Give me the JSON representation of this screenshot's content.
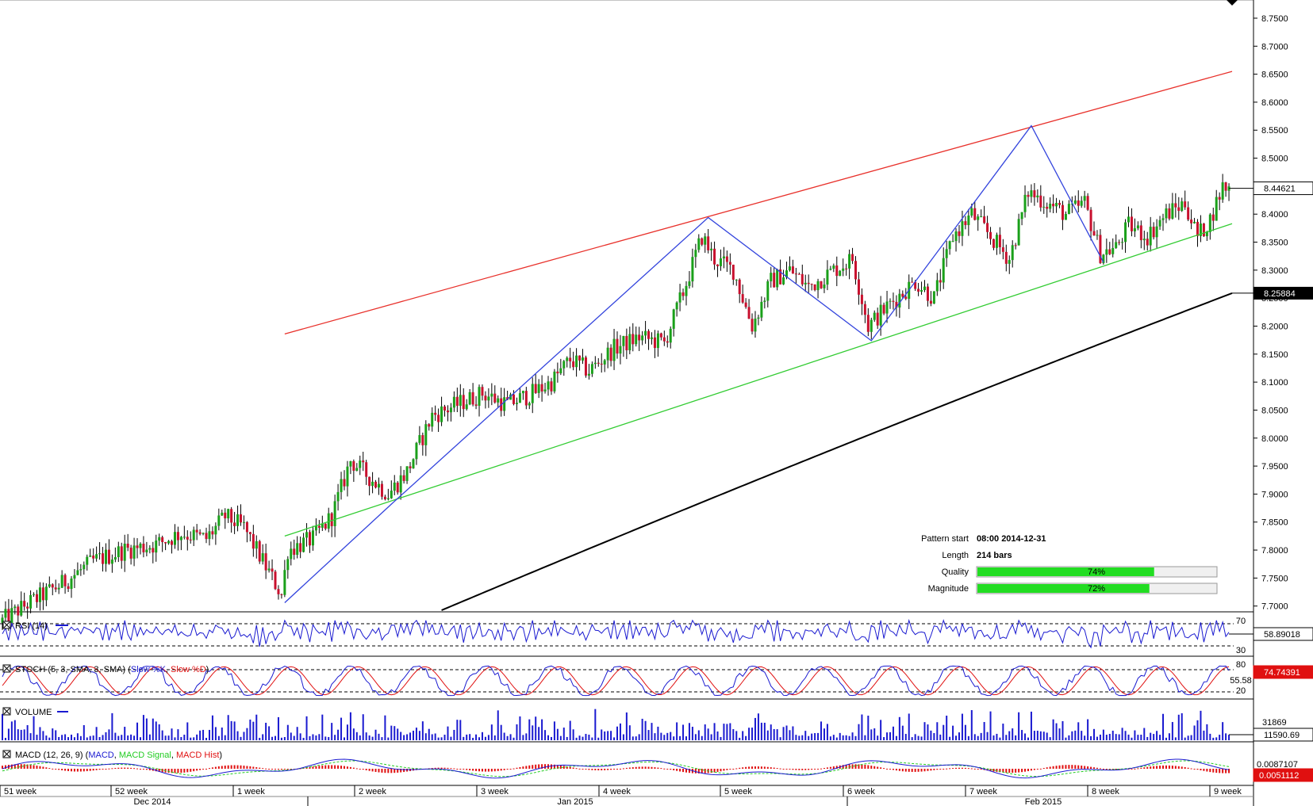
{
  "colors": {
    "bull": "#1aa01a",
    "bear": "#c8102e",
    "resistance": "#e8302a",
    "support": "#33cc33",
    "zigzag": "#3344dd",
    "ma": "#000000",
    "rsi": "#1a1ad0",
    "stoch_k": "#1a1ad0",
    "stoch_d": "#e01010",
    "volume": "#1a1ad0",
    "macd": "#1a1ad0",
    "macd_signal": "#22cc22",
    "macd_hist": "#e01010",
    "label_red_bg": "#e01010",
    "label_dark_bg": "#000000",
    "quality_bar": "#22dd22"
  },
  "price_axis": {
    "ticks": [
      "8.7500",
      "8.7000",
      "8.6500",
      "8.6000",
      "8.5500",
      "8.5000",
      "8.4500",
      "8.4000",
      "8.3500",
      "8.3000",
      "8.2500",
      "8.2000",
      "8.1500",
      "8.1000",
      "8.0500",
      "8.0000",
      "7.9500",
      "7.9000",
      "7.8500",
      "7.8000",
      "7.7500",
      "7.7000"
    ],
    "last_price_label": "8.44621",
    "ma_label": "8.25884"
  },
  "rsi": {
    "label": "RSI (14)",
    "level_high": "70",
    "level_low": "30",
    "value_label": "58.89018"
  },
  "stoch": {
    "label": "STOCH (5, 3, SMA, 3, SMA) (Slow %K, Slow %D)",
    "label_prefix": "STOCH (5, 3, SMA, 3, SMA) (",
    "label_k": "Slow %K",
    "label_sep": ", ",
    "label_d": "Slow %D",
    "label_suffix": ")",
    "level_high": "80",
    "level_low": "20",
    "value_label": "74.74391",
    "hidden_label": "55.58"
  },
  "volume": {
    "label": "VOLUME",
    "axis_label": "31869",
    "value_label": "11590.69"
  },
  "macd": {
    "label_prefix": "MACD (12, 26, 9) (",
    "label_macd": "MACD",
    "label_sep": ", ",
    "label_signal": "MACD Signal",
    "label_hist": "MACD Hist",
    "label_suffix": ")",
    "value_label": "0.0051112",
    "hidden_label": "0.0087107"
  },
  "time_axis": {
    "weeks": [
      "51 week",
      "52 week",
      "1 week",
      "2 week",
      "3 week",
      "4 week",
      "5 week",
      "6 week",
      "7 week",
      "8 week",
      "9 week"
    ],
    "months": [
      "Dec 2014",
      "Jan 2015",
      "Feb 2015"
    ]
  },
  "pattern_info": {
    "start_label": "Pattern start",
    "start_value": "08:00 2014-12-31",
    "length_label": "Length",
    "length_value": "214 bars",
    "quality_label": "Quality",
    "quality_value": "74%",
    "quality_pct": 74,
    "magnitude_label": "Magnitude",
    "magnitude_value": "72%",
    "magnitude_pct": 72
  },
  "chart_data": {
    "type": "candlestick",
    "symbol_axis": "price",
    "ylim": [
      7.6925,
      8.7825
    ],
    "trend_lines": [
      {
        "name": "resistance",
        "x_bar": [
          90,
          392
        ],
        "y": [
          8.186,
          8.655
        ]
      },
      {
        "name": "support",
        "x_bar": [
          90,
          392
        ],
        "y": [
          7.825,
          8.383
        ]
      }
    ],
    "zigzag": {
      "x_bar": [
        90,
        124,
        225,
        277,
        328,
        351
      ],
      "y": [
        7.706,
        7.882,
        8.394,
        8.174,
        8.558,
        8.314
      ]
    },
    "ma_200": {
      "start": 7.6925,
      "end": 8.25884
    },
    "last_close": 8.44621,
    "bars": 392
  }
}
